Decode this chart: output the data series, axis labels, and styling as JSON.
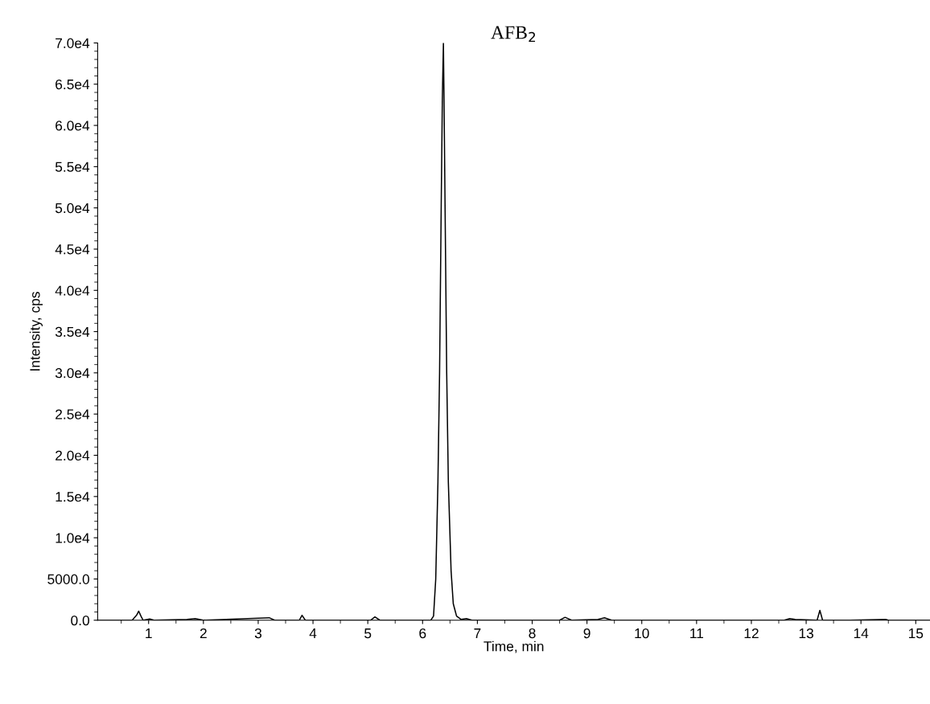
{
  "chart_data": {
    "type": "line",
    "title": "AFB$_{2}$",
    "xlabel": "Time, min",
    "ylabel": "Intensity, cps",
    "x": [
      0.07,
      0.7,
      0.78,
      0.82,
      0.86,
      0.9,
      1.02,
      1.1,
      1.7,
      1.85,
      2.0,
      3.2,
      3.3,
      3.75,
      3.8,
      3.86,
      5.05,
      5.13,
      5.22,
      6.15,
      6.2,
      6.24,
      6.28,
      6.31,
      6.34,
      6.36,
      6.38,
      6.39,
      6.41,
      6.44,
      6.47,
      6.52,
      6.56,
      6.62,
      6.7,
      6.8,
      6.9,
      8.5,
      8.6,
      8.72,
      9.2,
      9.32,
      9.45,
      12.6,
      12.7,
      12.8,
      13.2,
      13.25,
      13.3,
      13.8,
      14.45,
      14.5,
      15.26
    ],
    "series": [
      {
        "color": "#000000",
        "values": [
          0,
          0,
          600,
          1100,
          500,
          0,
          150,
          0,
          100,
          200,
          0,
          300,
          0,
          0,
          600,
          0,
          0,
          400,
          0,
          0,
          500,
          5000,
          16750,
          30000,
          50300,
          63000,
          70000,
          64000,
          50300,
          30000,
          16750,
          6000,
          2000,
          500,
          100,
          200,
          0,
          0,
          350,
          0,
          100,
          300,
          0,
          0,
          200,
          100,
          0,
          1200,
          0,
          0,
          100,
          0,
          0
        ]
      }
    ],
    "xlim": [
      0.07,
      15.26
    ],
    "ylim": [
      0,
      70000
    ],
    "xticks": [
      1,
      2,
      3,
      4,
      5,
      6,
      7,
      8,
      9,
      10,
      11,
      12,
      13,
      14,
      15
    ],
    "yticks": [
      {
        "value": 0,
        "label": "0.0"
      },
      {
        "value": 5000,
        "label": "5000.0"
      },
      {
        "value": 10000,
        "label": "1.0e4"
      },
      {
        "value": 15000,
        "label": "1.5e4"
      },
      {
        "value": 20000,
        "label": "2.0e4"
      },
      {
        "value": 25000,
        "label": "2.5e4"
      },
      {
        "value": 30000,
        "label": "3.0e4"
      },
      {
        "value": 35000,
        "label": "3.5e4"
      },
      {
        "value": 40000,
        "label": "4.0e4"
      },
      {
        "value": 45000,
        "label": "4.5e4"
      },
      {
        "value": 50000,
        "label": "5.0e4"
      },
      {
        "value": 55000,
        "label": "5.5e4"
      },
      {
        "value": 60000,
        "label": "6.0e4"
      },
      {
        "value": 65000,
        "label": "6.5e4"
      },
      {
        "value": 70000,
        "label": "7.0e4"
      }
    ],
    "grid": false,
    "legend": false
  }
}
